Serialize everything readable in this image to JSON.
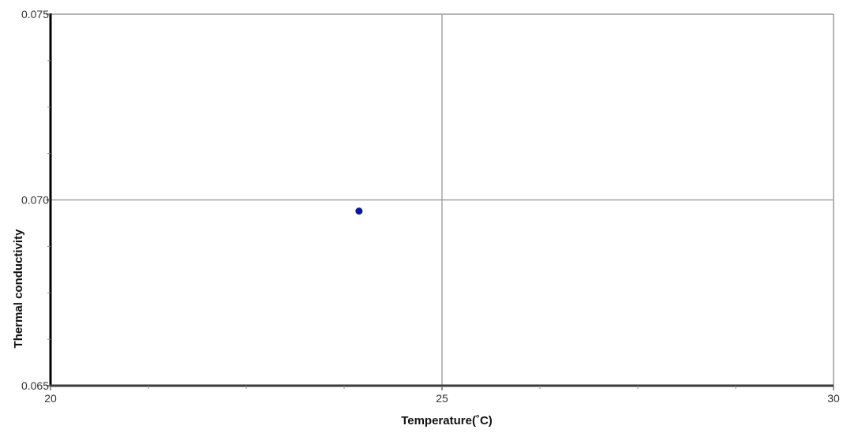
{
  "chart_data": {
    "type": "scatter",
    "title": "",
    "xlabel": "Temperature(˚C)",
    "ylabel": "Thermal conductivity",
    "xlim": [
      20,
      30
    ],
    "ylim": [
      0.065,
      0.075
    ],
    "x_ticks": [
      "20",
      "25",
      "30"
    ],
    "y_ticks": [
      "0.065",
      "0.070",
      "0.075"
    ],
    "x_major": [
      20,
      25,
      30
    ],
    "y_major": [
      0.065,
      0.07,
      0.075
    ],
    "x_minor": [
      21.25,
      22.5,
      23.75,
      26.25,
      27.5,
      28.75
    ],
    "y_minor": [
      0.06625,
      0.0675,
      0.06875,
      0.07125,
      0.0725,
      0.07375
    ],
    "grid": true,
    "legend": "none",
    "series": [
      {
        "points": [
          {
            "x": 23.94,
            "y": 0.0697
          }
        ],
        "color": "#0b1a8c"
      }
    ]
  }
}
